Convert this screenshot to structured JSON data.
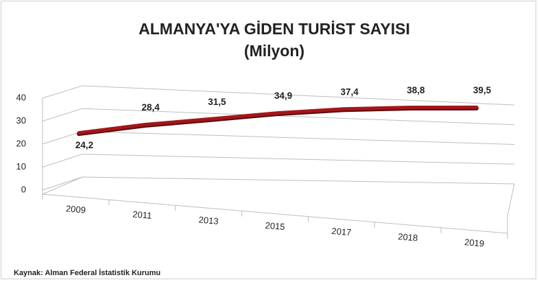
{
  "chart_data": {
    "type": "line",
    "title": "ALMANYA'YA GİDEN TURİST SAYISI",
    "subtitle": "(Milyon)",
    "categories": [
      "2009",
      "2011",
      "2013",
      "2015",
      "2017",
      "2018",
      "2019"
    ],
    "series": [
      {
        "name": "Turist Sayısı",
        "color": "#a3161b",
        "values": [
          24.2,
          28.4,
          31.5,
          34.9,
          37.4,
          38.8,
          39.5
        ],
        "value_labels": [
          "24,2",
          "28,4",
          "31,5",
          "34,9",
          "37,4",
          "38,8",
          "39,5"
        ]
      }
    ],
    "ylim": [
      0,
      40
    ],
    "yticks": [
      0,
      10,
      20,
      30,
      40
    ],
    "grid": true,
    "source": "Kaynak: Alman Federal İstatistik Kurumu"
  }
}
